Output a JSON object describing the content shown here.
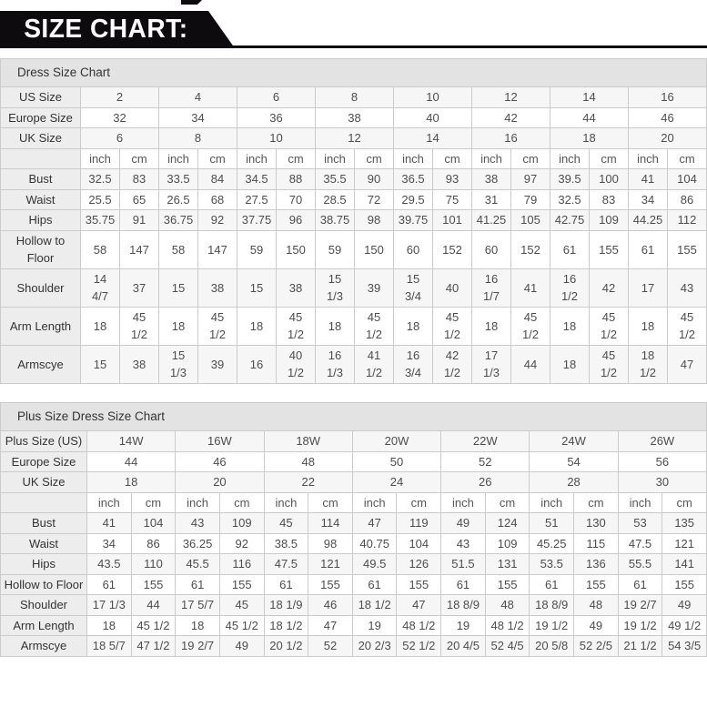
{
  "banner": {
    "title": "SIZE CHART:"
  },
  "colors": {
    "banner_bg": "#0d0b0e",
    "banner_text": "#ffffff",
    "title_row_bg": "#e3e3e3",
    "label_bg": "#ededed",
    "alt_row_bg": "#f6f6f6",
    "border": "#cbcbcb",
    "text": "#4d4d4d",
    "label_text": "#333333"
  },
  "tables": [
    {
      "title": "Dress Size Chart",
      "unit_labels": [
        "inch",
        "cm"
      ],
      "size_rows": [
        {
          "label": "US Size",
          "values": [
            "2",
            "4",
            "6",
            "8",
            "10",
            "12",
            "14",
            "16"
          ]
        },
        {
          "label": "Europe Size",
          "values": [
            "32",
            "34",
            "36",
            "38",
            "40",
            "42",
            "44",
            "46"
          ]
        },
        {
          "label": "UK Size",
          "values": [
            "6",
            "8",
            "10",
            "12",
            "14",
            "16",
            "18",
            "20"
          ]
        }
      ],
      "measurement_rows": [
        {
          "label": "Bust",
          "values": [
            "32.5",
            "83",
            "33.5",
            "84",
            "34.5",
            "88",
            "35.5",
            "90",
            "36.5",
            "93",
            "38",
            "97",
            "39.5",
            "100",
            "41",
            "104"
          ]
        },
        {
          "label": "Waist",
          "values": [
            "25.5",
            "65",
            "26.5",
            "68",
            "27.5",
            "70",
            "28.5",
            "72",
            "29.5",
            "75",
            "31",
            "79",
            "32.5",
            "83",
            "34",
            "86"
          ]
        },
        {
          "label": "Hips",
          "values": [
            "35.75",
            "91",
            "36.75",
            "92",
            "37.75",
            "96",
            "38.75",
            "98",
            "39.75",
            "101",
            "41.25",
            "105",
            "42.75",
            "109",
            "44.25",
            "112"
          ]
        },
        {
          "label": "Hollow to Floor",
          "values": [
            "58",
            "147",
            "58",
            "147",
            "59",
            "150",
            "59",
            "150",
            "60",
            "152",
            "60",
            "152",
            "61",
            "155",
            "61",
            "155"
          ]
        },
        {
          "label": "Shoulder",
          "values": [
            "14 4/7",
            "37",
            "15",
            "38",
            "15",
            "38",
            "15 1/3",
            "39",
            "15 3/4",
            "40",
            "16 1/7",
            "41",
            "16 1/2",
            "42",
            "17",
            "43"
          ]
        },
        {
          "label": "Arm Length",
          "values": [
            "18",
            "45 1/2",
            "18",
            "45 1/2",
            "18",
            "45 1/2",
            "18",
            "45 1/2",
            "18",
            "45 1/2",
            "18",
            "45 1/2",
            "18",
            "45 1/2",
            "18",
            "45 1/2"
          ]
        },
        {
          "label": "Armscye",
          "values": [
            "15",
            "38",
            "15 1/3",
            "39",
            "16",
            "40 1/2",
            "16 1/3",
            "41 1/2",
            "16 3/4",
            "42 1/2",
            "17 1/3",
            "44",
            "18",
            "45 1/2",
            "18 1/2",
            "47"
          ]
        }
      ]
    },
    {
      "title": "Plus Size Dress Size Chart",
      "unit_labels": [
        "inch",
        "cm"
      ],
      "size_rows": [
        {
          "label": "Plus Size (US)",
          "values": [
            "14W",
            "16W",
            "18W",
            "20W",
            "22W",
            "24W",
            "26W"
          ]
        },
        {
          "label": "Europe Size",
          "values": [
            "44",
            "46",
            "48",
            "50",
            "52",
            "54",
            "56"
          ]
        },
        {
          "label": "UK Size",
          "values": [
            "18",
            "20",
            "22",
            "24",
            "26",
            "28",
            "30"
          ]
        }
      ],
      "measurement_rows": [
        {
          "label": "Bust",
          "values": [
            "41",
            "104",
            "43",
            "109",
            "45",
            "114",
            "47",
            "119",
            "49",
            "124",
            "51",
            "130",
            "53",
            "135"
          ]
        },
        {
          "label": "Waist",
          "values": [
            "34",
            "86",
            "36.25",
            "92",
            "38.5",
            "98",
            "40.75",
            "104",
            "43",
            "109",
            "45.25",
            "115",
            "47.5",
            "121"
          ]
        },
        {
          "label": "Hips",
          "values": [
            "43.5",
            "110",
            "45.5",
            "116",
            "47.5",
            "121",
            "49.5",
            "126",
            "51.5",
            "131",
            "53.5",
            "136",
            "55.5",
            "141"
          ]
        },
        {
          "label": "Hollow to Floor",
          "values": [
            "61",
            "155",
            "61",
            "155",
            "61",
            "155",
            "61",
            "155",
            "61",
            "155",
            "61",
            "155",
            "61",
            "155"
          ]
        },
        {
          "label": "Shoulder",
          "values": [
            "17 1/3",
            "44",
            "17 5/7",
            "45",
            "18 1/9",
            "46",
            "18 1/2",
            "47",
            "18 8/9",
            "48",
            "18 8/9",
            "48",
            "19 2/7",
            "49"
          ]
        },
        {
          "label": "Arm Length",
          "values": [
            "18",
            "45 1/2",
            "18",
            "45 1/2",
            "18 1/2",
            "47",
            "19",
            "48 1/2",
            "19",
            "48 1/2",
            "19 1/2",
            "49",
            "19 1/2",
            "49 1/2"
          ]
        },
        {
          "label": "Armscye",
          "values": [
            "18 5/7",
            "47 1/2",
            "19 2/7",
            "49",
            "20 1/2",
            "52",
            "20 2/3",
            "52 1/2",
            "20 4/5",
            "52 4/5",
            "20 5/8",
            "52 2/5",
            "21 1/2",
            "54 3/5"
          ]
        }
      ]
    }
  ]
}
